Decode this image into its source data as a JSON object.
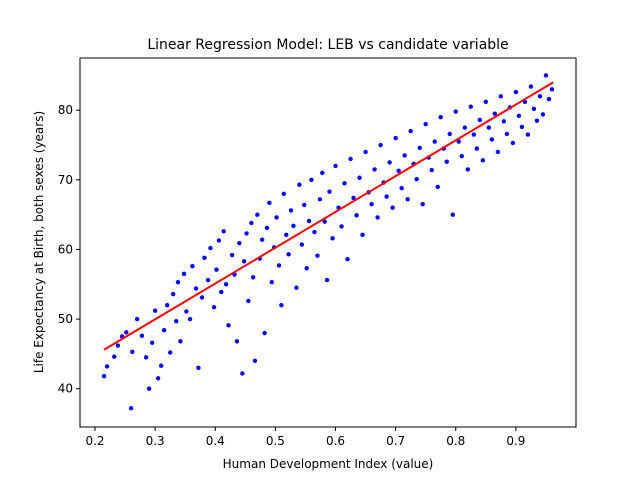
{
  "chart_data": {
    "type": "scatter",
    "title": "Linear Regression Model: LEB vs candidate variable",
    "xlabel": "Human Development Index (value)",
    "ylabel": "Life Expectancy at Birth, both sexes (years)",
    "xlim": [
      0.175,
      1.0
    ],
    "ylim": [
      34.5,
      87.5
    ],
    "xticks": [
      "0.2",
      "0.3",
      "0.4",
      "0.5",
      "0.6",
      "0.7",
      "0.8",
      "0.9"
    ],
    "yticks": [
      "40",
      "50",
      "60",
      "70",
      "80"
    ],
    "grid": false,
    "legend": "none",
    "series": [
      {
        "kind": "points",
        "color": "#0000ff",
        "points": [
          [
            0.215,
            41.8
          ],
          [
            0.22,
            43.2
          ],
          [
            0.232,
            44.6
          ],
          [
            0.238,
            46.2
          ],
          [
            0.245,
            47.5
          ],
          [
            0.252,
            48.1
          ],
          [
            0.26,
            37.2
          ],
          [
            0.262,
            45.3
          ],
          [
            0.27,
            50.0
          ],
          [
            0.278,
            47.6
          ],
          [
            0.285,
            44.5
          ],
          [
            0.29,
            40.0
          ],
          [
            0.295,
            46.6
          ],
          [
            0.3,
            51.2
          ],
          [
            0.305,
            41.5
          ],
          [
            0.31,
            43.3
          ],
          [
            0.315,
            48.4
          ],
          [
            0.32,
            52.0
          ],
          [
            0.325,
            45.2
          ],
          [
            0.33,
            53.6
          ],
          [
            0.335,
            49.7
          ],
          [
            0.338,
            55.3
          ],
          [
            0.342,
            46.8
          ],
          [
            0.348,
            56.5
          ],
          [
            0.352,
            51.1
          ],
          [
            0.358,
            50.0
          ],
          [
            0.362,
            57.6
          ],
          [
            0.368,
            54.4
          ],
          [
            0.372,
            43.0
          ],
          [
            0.378,
            53.1
          ],
          [
            0.382,
            58.8
          ],
          [
            0.388,
            55.6
          ],
          [
            0.392,
            60.2
          ],
          [
            0.398,
            51.7
          ],
          [
            0.402,
            57.1
          ],
          [
            0.406,
            61.3
          ],
          [
            0.41,
            53.9
          ],
          [
            0.414,
            62.6
          ],
          [
            0.418,
            55.0
          ],
          [
            0.422,
            49.1
          ],
          [
            0.428,
            59.2
          ],
          [
            0.432,
            56.4
          ],
          [
            0.436,
            46.8
          ],
          [
            0.44,
            60.9
          ],
          [
            0.445,
            42.2
          ],
          [
            0.448,
            58.3
          ],
          [
            0.452,
            62.3
          ],
          [
            0.455,
            52.6
          ],
          [
            0.46,
            63.8
          ],
          [
            0.463,
            56.0
          ],
          [
            0.466,
            44.0
          ],
          [
            0.47,
            65.0
          ],
          [
            0.474,
            58.7
          ],
          [
            0.478,
            61.4
          ],
          [
            0.482,
            48.0
          ],
          [
            0.486,
            63.1
          ],
          [
            0.49,
            66.7
          ],
          [
            0.494,
            55.3
          ],
          [
            0.498,
            60.3
          ],
          [
            0.502,
            64.6
          ],
          [
            0.506,
            57.7
          ],
          [
            0.51,
            52.0
          ],
          [
            0.514,
            68.0
          ],
          [
            0.518,
            62.1
          ],
          [
            0.522,
            59.3
          ],
          [
            0.526,
            65.6
          ],
          [
            0.53,
            63.4
          ],
          [
            0.535,
            54.5
          ],
          [
            0.54,
            69.3
          ],
          [
            0.544,
            60.7
          ],
          [
            0.548,
            66.4
          ],
          [
            0.552,
            57.3
          ],
          [
            0.556,
            64.1
          ],
          [
            0.56,
            70.0
          ],
          [
            0.565,
            62.5
          ],
          [
            0.57,
            59.1
          ],
          [
            0.574,
            67.2
          ],
          [
            0.578,
            71.0
          ],
          [
            0.582,
            64.0
          ],
          [
            0.586,
            55.6
          ],
          [
            0.59,
            68.3
          ],
          [
            0.595,
            61.6
          ],
          [
            0.6,
            72.0
          ],
          [
            0.605,
            66.0
          ],
          [
            0.61,
            63.3
          ],
          [
            0.615,
            69.5
          ],
          [
            0.62,
            58.6
          ],
          [
            0.625,
            73.0
          ],
          [
            0.63,
            67.4
          ],
          [
            0.635,
            64.9
          ],
          [
            0.64,
            70.3
          ],
          [
            0.645,
            62.1
          ],
          [
            0.65,
            74.0
          ],
          [
            0.655,
            68.2
          ],
          [
            0.66,
            66.5
          ],
          [
            0.665,
            71.5
          ],
          [
            0.67,
            64.6
          ],
          [
            0.675,
            75.0
          ],
          [
            0.68,
            69.6
          ],
          [
            0.685,
            67.6
          ],
          [
            0.69,
            72.5
          ],
          [
            0.695,
            66.0
          ],
          [
            0.7,
            76.0
          ],
          [
            0.705,
            71.3
          ],
          [
            0.71,
            68.8
          ],
          [
            0.715,
            73.5
          ],
          [
            0.72,
            67.2
          ],
          [
            0.725,
            77.0
          ],
          [
            0.73,
            72.3
          ],
          [
            0.735,
            70.1
          ],
          [
            0.74,
            74.6
          ],
          [
            0.745,
            66.5
          ],
          [
            0.75,
            78.0
          ],
          [
            0.755,
            73.2
          ],
          [
            0.76,
            71.4
          ],
          [
            0.765,
            75.5
          ],
          [
            0.77,
            69.0
          ],
          [
            0.775,
            79.0
          ],
          [
            0.78,
            74.5
          ],
          [
            0.785,
            72.6
          ],
          [
            0.79,
            76.6
          ],
          [
            0.795,
            65.0
          ],
          [
            0.8,
            79.8
          ],
          [
            0.805,
            75.5
          ],
          [
            0.81,
            73.4
          ],
          [
            0.815,
            77.5
          ],
          [
            0.82,
            71.5
          ],
          [
            0.825,
            80.5
          ],
          [
            0.83,
            76.5
          ],
          [
            0.835,
            74.5
          ],
          [
            0.84,
            78.6
          ],
          [
            0.845,
            72.8
          ],
          [
            0.85,
            81.2
          ],
          [
            0.855,
            77.5
          ],
          [
            0.86,
            75.8
          ],
          [
            0.865,
            79.5
          ],
          [
            0.87,
            74.0
          ],
          [
            0.875,
            82.0
          ],
          [
            0.88,
            78.4
          ],
          [
            0.885,
            76.6
          ],
          [
            0.89,
            80.4
          ],
          [
            0.895,
            75.3
          ],
          [
            0.9,
            82.6
          ],
          [
            0.905,
            79.2
          ],
          [
            0.91,
            77.6
          ],
          [
            0.915,
            81.2
          ],
          [
            0.92,
            76.5
          ],
          [
            0.925,
            83.4
          ],
          [
            0.93,
            80.2
          ],
          [
            0.935,
            78.5
          ],
          [
            0.94,
            82.0
          ],
          [
            0.945,
            79.4
          ],
          [
            0.95,
            85.0
          ],
          [
            0.955,
            81.6
          ],
          [
            0.96,
            83.0
          ]
        ]
      },
      {
        "kind": "line",
        "color": "#ff0000",
        "points": [
          [
            0.215,
            45.6
          ],
          [
            0.962,
            84.0
          ]
        ]
      }
    ]
  }
}
